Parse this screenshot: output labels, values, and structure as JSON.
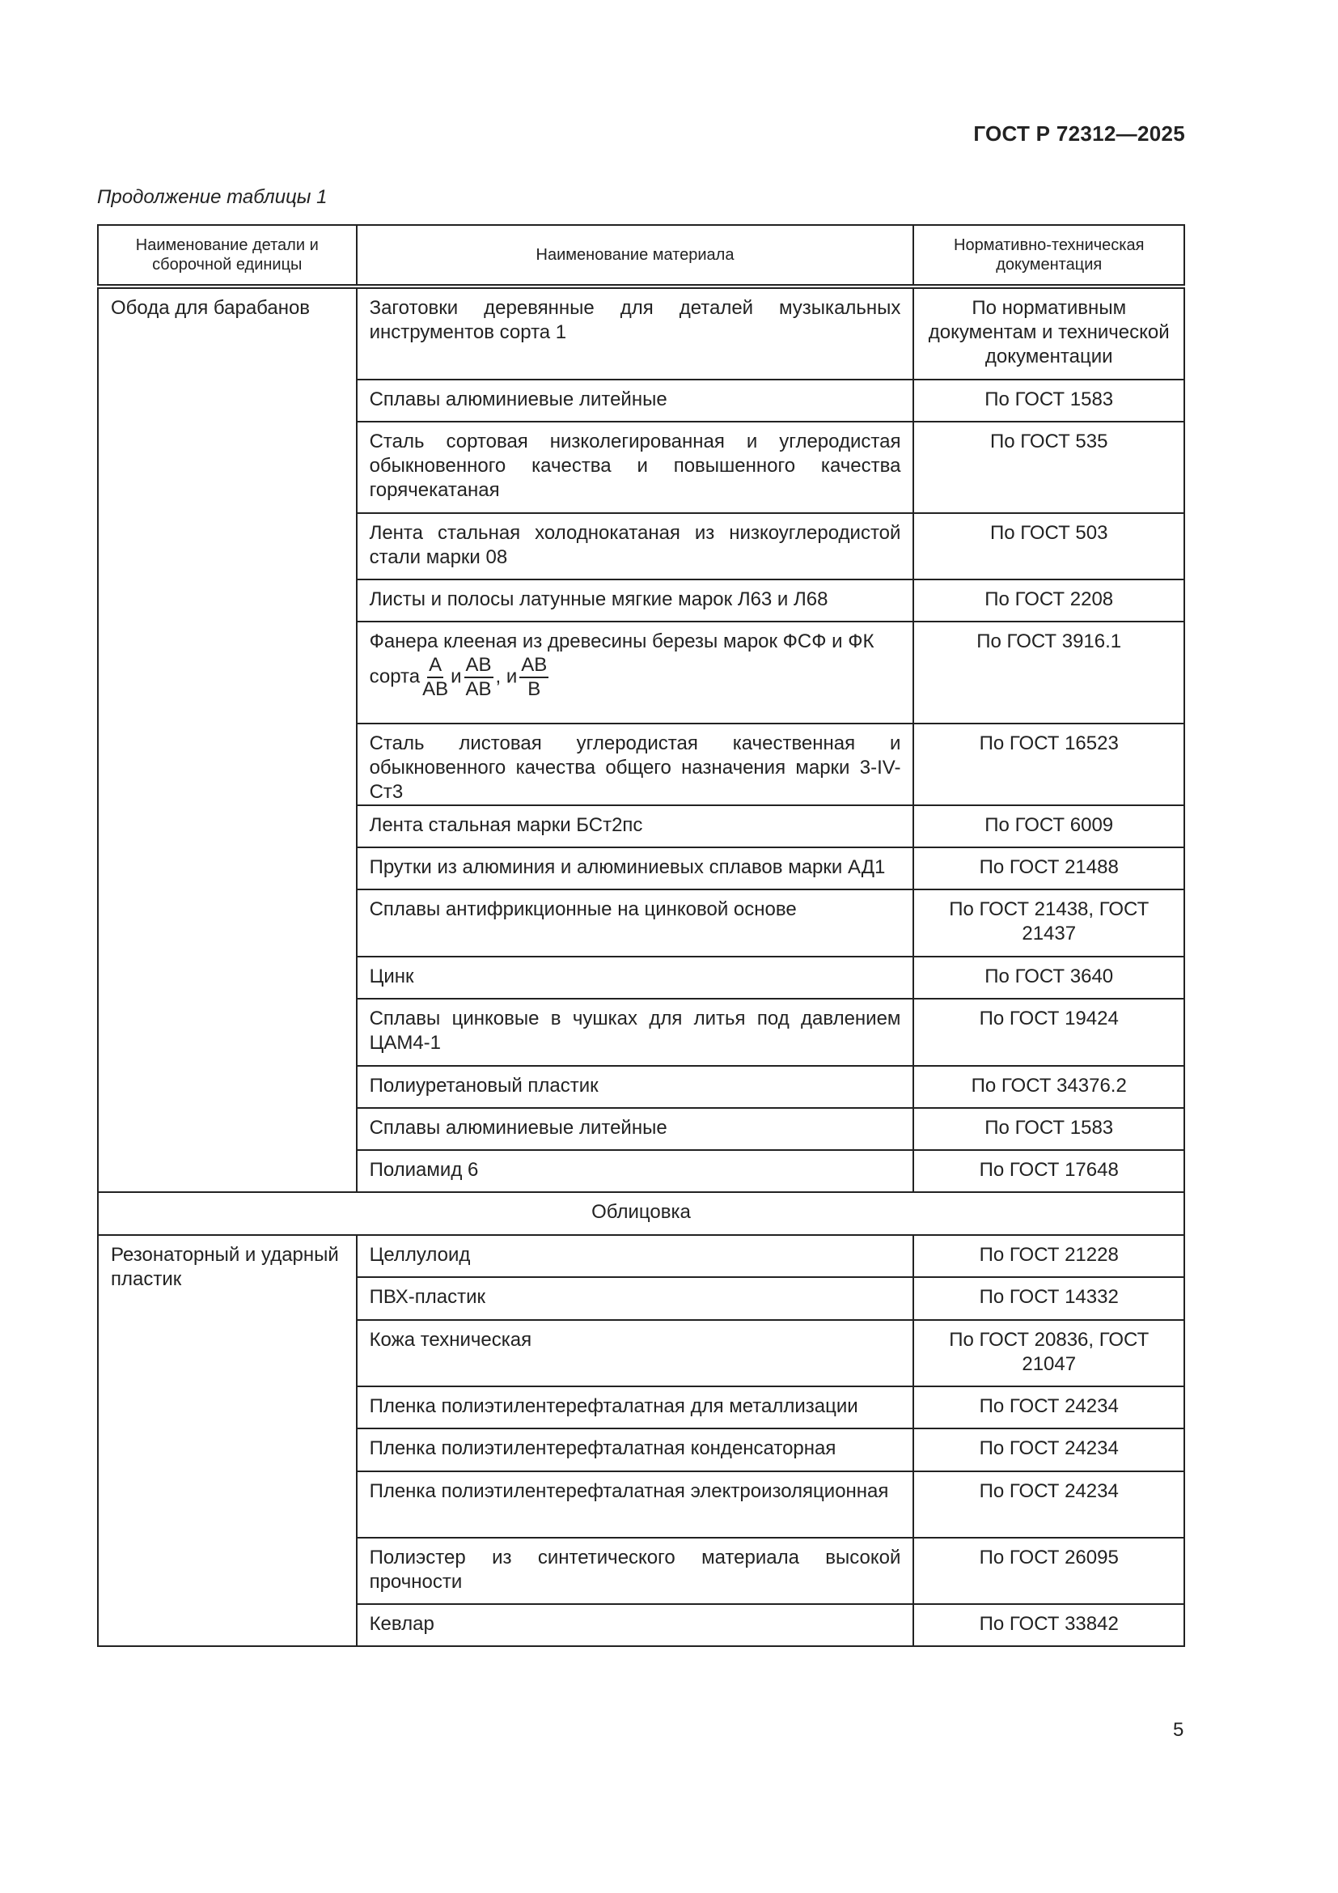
{
  "header": {
    "doc_code": "ГОСТ Р 72312—2025",
    "caption": "Продолжение таблицы 1"
  },
  "table": {
    "columns": [
      "Наименование детали и сборочной единицы",
      "Наименование материала",
      "Нормативно-техническая документация"
    ],
    "groups": [
      {
        "part": "Обода для барабанов",
        "rows": [
          {
            "material": "Заготовки деревянные для деталей музыкальных инструментов сорта 1",
            "doc": "По нормативным документам и технической документации"
          },
          {
            "material": "Сплавы алюминиевые литейные",
            "doc": "По ГОСТ 1583"
          },
          {
            "material": "Сталь сортовая низколегированная и углеродистая обыкновенного качества и повышенного качества горячекатаная",
            "doc": "По ГОСТ 535"
          },
          {
            "material": "Лента стальная холоднокатаная из низкоуглеродистой стали марки 08",
            "doc": "По ГОСТ 503"
          },
          {
            "material": "Листы и полосы латунные мягкие марок Л63 и Л68",
            "doc": "По ГОСТ 2208"
          },
          {
            "material": "Фанера клееная из древесины березы марок ФСФ и ФК",
            "material_suffix": {
              "prefix": "сорта",
              "fractions": [
                {
                  "num": "А",
                  "den": "АВ"
                },
                {
                  "num": "АВ",
                  "den": "АВ"
                },
                {
                  "num": "АВ",
                  "den": "В"
                }
              ],
              "separators": [
                "и",
                ", и"
              ]
            },
            "doc": "По ГОСТ 3916.1"
          },
          {
            "material": "Сталь листовая углеродистая качественная и обыкновенного качества общего назначения марки 3-IV-Ст3",
            "doc": "По ГОСТ 16523"
          },
          {
            "material": "Лента стальная марки БСт2пс",
            "doc": "По ГОСТ 6009"
          },
          {
            "material": "Прутки из алюминия и алюминиевых сплавов марки АД1",
            "doc": "По ГОСТ 21488"
          },
          {
            "material": "Сплавы антифрикционные на цинковой основе",
            "doc": "По ГОСТ 21438, ГОСТ 21437"
          },
          {
            "material": "Цинк",
            "doc": "По ГОСТ 3640"
          },
          {
            "material": "Сплавы цинковые в чушках для литья под давлением ЦАМ4-1",
            "doc": "По ГОСТ 19424"
          },
          {
            "material": "Полиуретановый пластик",
            "doc": "По ГОСТ 34376.2"
          },
          {
            "material": "Сплавы алюминиевые литейные",
            "doc": "По ГОСТ 1583"
          },
          {
            "material": "Полиамид 6",
            "doc": "По ГОСТ 17648"
          }
        ]
      },
      {
        "section": "Облицовка"
      },
      {
        "part": "Резонаторный и ударный пластик",
        "rows": [
          {
            "material": "Целлулоид",
            "doc": "По ГОСТ 21228"
          },
          {
            "material": "ПВХ-пластик",
            "doc": "По ГОСТ 14332"
          },
          {
            "material": "Кожа техническая",
            "doc": "По ГОСТ 20836, ГОСТ 21047"
          },
          {
            "material": "Пленка полиэтилентерефталатная для металлизации",
            "doc": "По ГОСТ 24234"
          },
          {
            "material": "Пленка полиэтилентерефталатная конденсаторная",
            "doc": "По ГОСТ 24234"
          },
          {
            "material": "Пленка полиэтилентерефталатная электроизоляционная",
            "doc": "По ГОСТ 24234"
          },
          {
            "material": "Полиэстер из синтетического материала высокой прочности",
            "doc": "По ГОСТ 26095"
          },
          {
            "material": "Кевлар",
            "doc": "По ГОСТ 33842"
          }
        ]
      }
    ]
  },
  "footer": {
    "page_number": "5"
  }
}
